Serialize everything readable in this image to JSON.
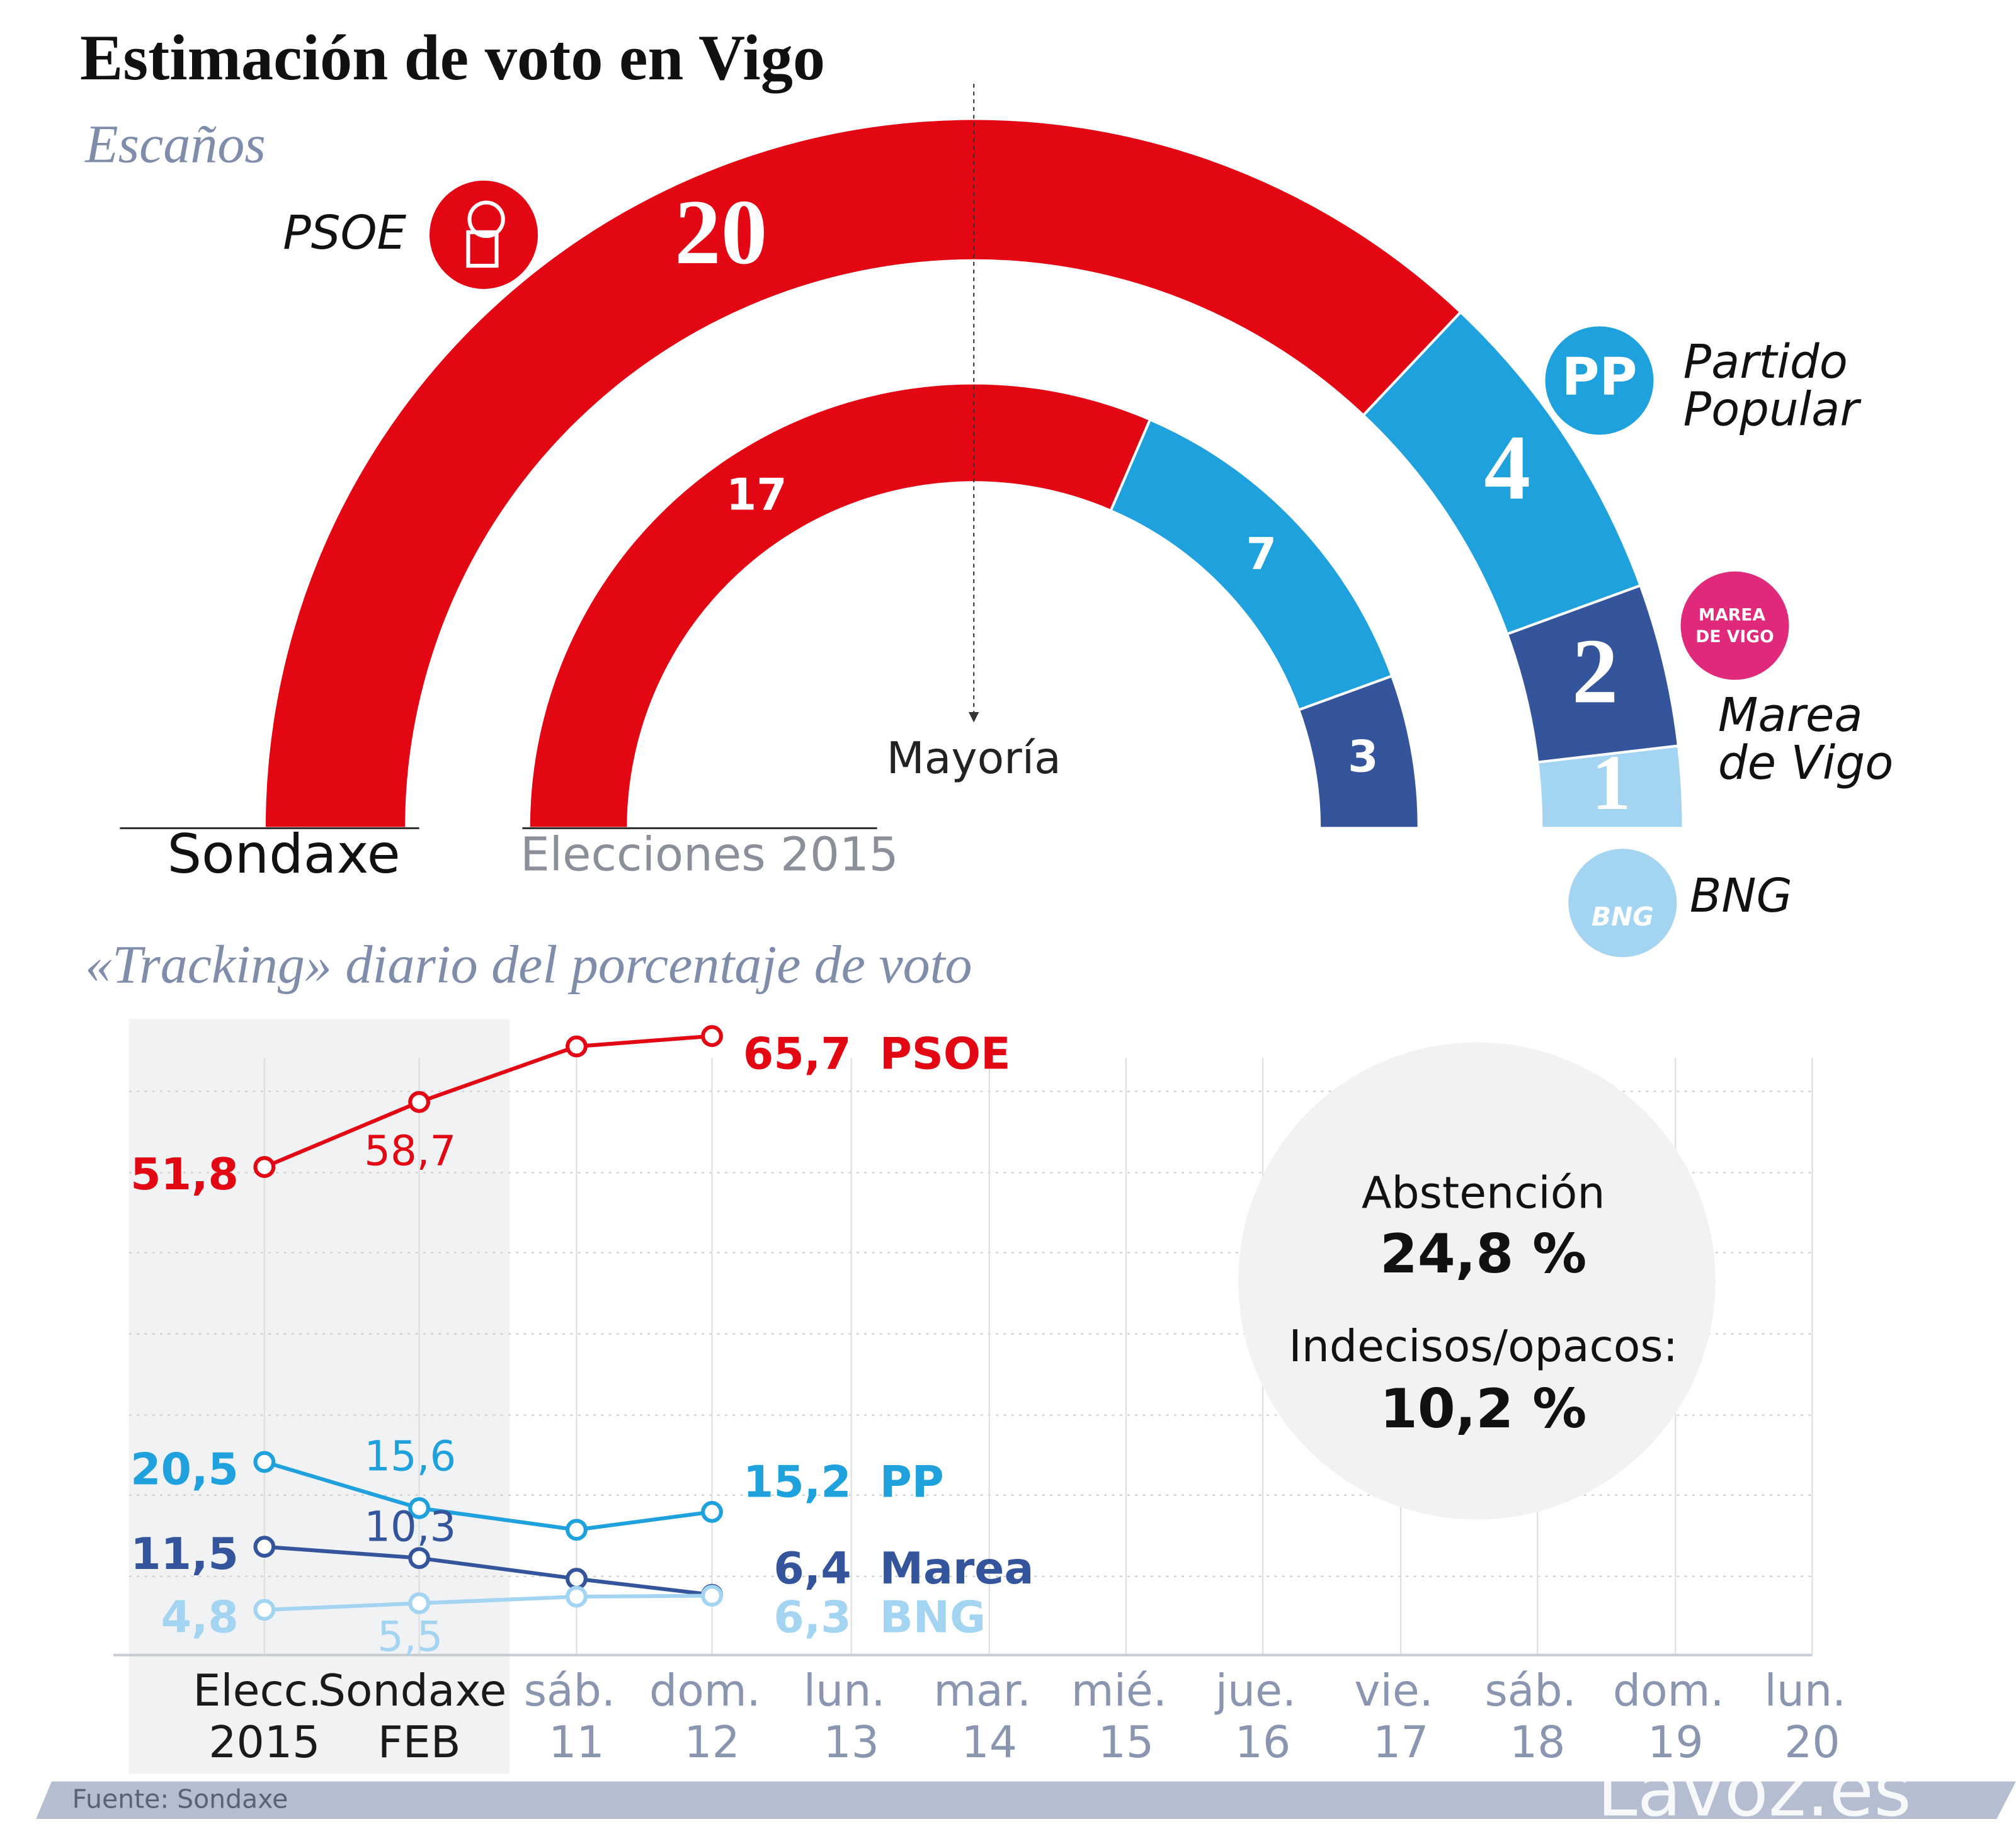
{
  "chart_data": [
    {
      "type": "semicircle",
      "title": "Estimación de voto en Vigo",
      "subtitle": "Escaños",
      "annotation": "Mayoría",
      "categories": [
        "PSOE",
        "Partido Popular",
        "Marea de Vigo",
        "BNG"
      ],
      "colors": [
        "#e30613",
        "#1ea1dc",
        "#34559c",
        "#a3d4f1"
      ],
      "logo_labels": [
        null,
        "PP",
        "MAREA DE VIGO",
        "BNG"
      ],
      "series": [
        {
          "name": "Sondaxe",
          "values": [
            20,
            4,
            2,
            1
          ]
        },
        {
          "name": "Elecciones 2015",
          "values": [
            17,
            7,
            3,
            null
          ]
        }
      ]
    },
    {
      "type": "line",
      "title": "«Tracking» diario del porcentaje de voto",
      "categories": [
        "Elecc. 2015",
        "Sondaxe FEB",
        "sáb. 11",
        "dom. 12",
        "lun. 13",
        "mar. 14",
        "mié. 15",
        "jue. 16",
        "vie. 17",
        "sáb. 18",
        "dom. 19",
        "lun. 20"
      ],
      "ylim": [
        0,
        67.5
      ],
      "series": [
        {
          "name": "PSOE",
          "color": "#e30613",
          "values": [
            51.8,
            58.7,
            64.6,
            65.7,
            null,
            null,
            null,
            null,
            null,
            null,
            null,
            null
          ],
          "value_labels": [
            "51,8",
            "58,7",
            null,
            "65,7",
            null,
            null,
            null,
            null,
            null,
            null,
            null,
            null
          ]
        },
        {
          "name": "PP",
          "color": "#1ea1dc",
          "values": [
            20.5,
            15.6,
            13.3,
            15.2,
            null,
            null,
            null,
            null,
            null,
            null,
            null,
            null
          ],
          "value_labels": [
            "20,5",
            "15,6",
            null,
            "15,2",
            null,
            null,
            null,
            null,
            null,
            null,
            null,
            null
          ]
        },
        {
          "name": "Marea",
          "color": "#34559c",
          "values": [
            11.5,
            10.3,
            8.1,
            6.4,
            null,
            null,
            null,
            null,
            null,
            null,
            null,
            null
          ],
          "value_labels": [
            "11,5",
            "10,3",
            null,
            "6,4",
            null,
            null,
            null,
            null,
            null,
            null,
            null,
            null
          ]
        },
        {
          "name": "BNG",
          "color": "#a3d4f1",
          "values": [
            4.8,
            5.5,
            6.2,
            6.3,
            null,
            null,
            null,
            null,
            null,
            null,
            null,
            null
          ],
          "value_labels": [
            "4,8",
            "5,5",
            null,
            "6,3",
            null,
            null,
            null,
            null,
            null,
            null,
            null,
            null
          ]
        }
      ],
      "annotations": [
        {
          "label": "Abstención",
          "value_label": "24,8 %"
        },
        {
          "label": "Indecisos/opacos:",
          "value_label": "10,2 %"
        }
      ]
    }
  ],
  "source": "Fuente: Sondaxe",
  "brand": "Lavoz.es"
}
